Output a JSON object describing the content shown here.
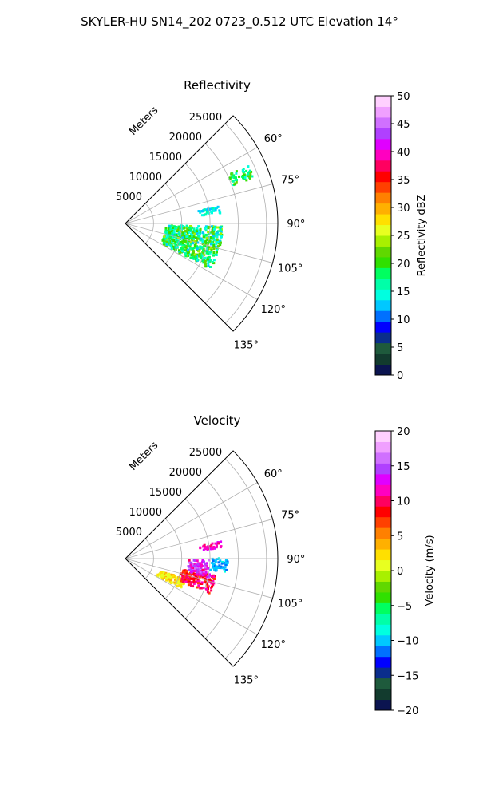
{
  "suptitle": "SKYLER-HU  SN14_202  0723_0.512 UTC Elevation 14°",
  "chart_data": [
    {
      "type": "polar-sector",
      "title": "Reflectivity",
      "range_axis_label": "Meters",
      "range_ticks": [
        5000,
        10000,
        15000,
        20000,
        25000
      ],
      "range_tick_labels": [
        "5000",
        "10000",
        "15000",
        "20000",
        "25000"
      ],
      "range_max": 27000,
      "azimuth_range_deg": [
        45,
        135
      ],
      "azimuth_ticks_deg": [
        60,
        75,
        90,
        105,
        120,
        135
      ],
      "azimuth_tick_labels": [
        "60°",
        "75°",
        "90°",
        "105°",
        "120°",
        "135°"
      ],
      "grid": true,
      "colorbar": {
        "label": "Reflectivity dBZ",
        "min": 0,
        "max": 50,
        "ticks": [
          0,
          5,
          10,
          15,
          20,
          25,
          30,
          35,
          40,
          45,
          50
        ],
        "tick_labels": [
          "0",
          "5",
          "10",
          "15",
          "20",
          "25",
          "30",
          "35",
          "40",
          "45",
          "50"
        ],
        "colors": [
          "#0b1450",
          "#123b2e",
          "#1e5a3c",
          "#0a2d8c",
          "#0000ff",
          "#0070ff",
          "#00c8ff",
          "#00ffe0",
          "#00ffa8",
          "#00ff60",
          "#30e000",
          "#60d800",
          "#a8f000",
          "#e8ff20",
          "#ffe000",
          "#ffb000",
          "#ff8000",
          "#ff4000",
          "#ff0000",
          "#ff0060",
          "#ff00c0",
          "#e000ff",
          "#b040ff",
          "#d070ff",
          "#f0a0ff",
          "#ffd0ff"
        ]
      },
      "data_description_units": "dBZ",
      "echo_regions": [
        {
          "az_range_deg": [
            91,
            118
          ],
          "range_m": [
            7000,
            17000
          ],
          "value_range": [
            12,
            24
          ]
        },
        {
          "az_range_deg": [
            79,
            83
          ],
          "range_m": [
            13000,
            17000
          ],
          "value_range": [
            12,
            16
          ]
        },
        {
          "az_range_deg": [
            64,
            70
          ],
          "range_m": [
            20000,
            24000
          ],
          "value_range": [
            14,
            22
          ]
        }
      ]
    },
    {
      "type": "polar-sector",
      "title": "Velocity",
      "range_axis_label": "Meters",
      "range_ticks": [
        5000,
        10000,
        15000,
        20000,
        25000
      ],
      "range_tick_labels": [
        "5000",
        "10000",
        "15000",
        "20000",
        "25000"
      ],
      "range_max": 27000,
      "azimuth_range_deg": [
        45,
        135
      ],
      "azimuth_ticks_deg": [
        60,
        75,
        90,
        105,
        120,
        135
      ],
      "azimuth_tick_labels": [
        "60°",
        "75°",
        "90°",
        "105°",
        "120°",
        "135°"
      ],
      "grid": true,
      "colorbar": {
        "label": "Velocity (m/s)",
        "min": -20,
        "max": 20,
        "ticks": [
          -20,
          -15,
          -10,
          -5,
          0,
          5,
          10,
          15,
          20
        ],
        "tick_labels": [
          "−20",
          "−15",
          "−10",
          "−5",
          "0",
          "5",
          "10",
          "15",
          "20"
        ],
        "colors": [
          "#0b1450",
          "#123b2e",
          "#1e5a3c",
          "#0a2d8c",
          "#0000ff",
          "#0070ff",
          "#00c8ff",
          "#00ffe0",
          "#00ffa8",
          "#00ff60",
          "#30e000",
          "#60d800",
          "#a8f000",
          "#e8ff20",
          "#ffe000",
          "#ffb000",
          "#ff8000",
          "#ff4000",
          "#ff0000",
          "#ff0060",
          "#ff00c0",
          "#e000ff",
          "#b040ff",
          "#d070ff",
          "#f0a0ff",
          "#ffd0ff"
        ]
      },
      "data_description_units": "m/s",
      "echo_regions": [
        {
          "az_range_deg": [
            108,
            118
          ],
          "range_m": [
            6000,
            11000
          ],
          "value_range": [
            0,
            4
          ]
        },
        {
          "az_range_deg": [
            100,
            112
          ],
          "range_m": [
            10000,
            16000
          ],
          "value_range": [
            6,
            12
          ]
        },
        {
          "az_range_deg": [
            90,
            102
          ],
          "range_m": [
            11000,
            15000
          ],
          "value_range": [
            10,
            16
          ]
        },
        {
          "az_range_deg": [
            89,
            97
          ],
          "range_m": [
            15000,
            18000
          ],
          "value_range": [
            -12,
            -9
          ]
        },
        {
          "az_range_deg": [
            79,
            83
          ],
          "range_m": [
            13000,
            17000
          ],
          "value_range": [
            10,
            13
          ]
        }
      ]
    }
  ]
}
